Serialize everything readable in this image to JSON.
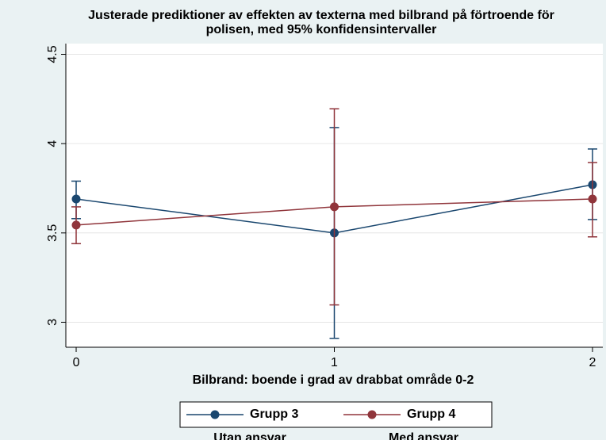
{
  "chart_data": {
    "type": "line",
    "title": "Justerade prediktioner av effekten av texterna med bilbrand på förtroende för polisen, med 95% konfidensintervaller",
    "xlabel": "Bilbrand: boende i grad av drabbat område 0-2",
    "x": [
      0,
      1,
      2
    ],
    "xlim": [
      -0.04,
      2.04
    ],
    "xticks": [
      0,
      1,
      2
    ],
    "ylim": [
      2.86,
      4.56
    ],
    "yticks": [
      3,
      3.5,
      4,
      4.5
    ],
    "grid": true,
    "legend": "bottom",
    "series": [
      {
        "name": "Grupp 3",
        "color": "#1a476f",
        "values": [
          3.69,
          3.5,
          3.77
        ],
        "lower": [
          3.58,
          2.91,
          3.575
        ],
        "upper": [
          3.79,
          4.09,
          3.97
        ]
      },
      {
        "name": "Grupp 4",
        "color": "#90353b",
        "values": [
          3.544,
          3.646,
          3.69
        ],
        "lower": [
          3.44,
          3.097,
          3.478
        ],
        "upper": [
          3.646,
          4.195,
          3.894
        ]
      }
    ],
    "annotations": [
      "Utan ansvar",
      "Med ansvar"
    ]
  }
}
